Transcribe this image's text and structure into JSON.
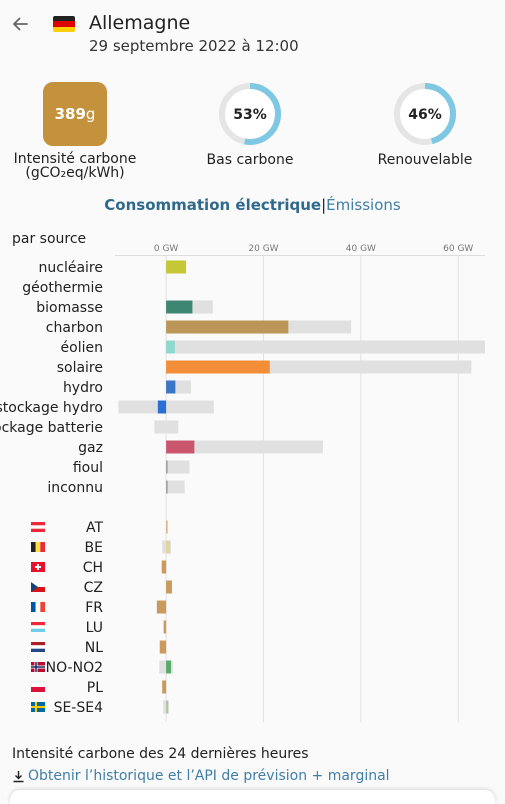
{
  "header": {
    "zone_name": "Allemagne",
    "datetime": "29 septembre 2022 à 12:00"
  },
  "stats": {
    "carbon_intensity": {
      "value": "389",
      "unit": "g",
      "label": "Intensité carbone",
      "sublabel": "(gCO₂eq/kWh)",
      "color": "#c4913d"
    },
    "low_carbon": {
      "value": "53%",
      "fraction": 0.53,
      "label": "Bas carbone"
    },
    "renewable": {
      "value": "46%",
      "fraction": 0.46,
      "label": "Renouvelable"
    },
    "ring_color": "#7ec8e3"
  },
  "tabs": {
    "consumption": "Consommation électrique",
    "separator": "|",
    "emissions": "Émissions"
  },
  "section_label": "par source",
  "chart_data": {
    "type": "bar",
    "unit": "GW",
    "xlim": [
      -10.5,
      65.5
    ],
    "ticks": [
      0,
      20,
      40,
      60
    ],
    "tick_labels": [
      "0 GW",
      "20 GW",
      "40 GW",
      "60 GW"
    ],
    "sources": [
      {
        "label": "nucléaire",
        "value": 4.1,
        "capacity": 4.1,
        "color": "#c5c735"
      },
      {
        "label": "géothermie",
        "value": 0,
        "capacity": 0,
        "color": "#c5c735"
      },
      {
        "label": "biomasse",
        "value": 5.4,
        "capacity": 9.6,
        "color": "#3d8672"
      },
      {
        "label": "charbon",
        "value": 25.1,
        "capacity": 38.0,
        "color": "#ba9758"
      },
      {
        "label": "éolien",
        "value": 1.8,
        "capacity": 65.5,
        "color": "#8fd8cd"
      },
      {
        "label": "solaire",
        "value": 21.3,
        "capacity": 62.7,
        "color": "#f38e38"
      },
      {
        "label": "hydro",
        "value": 1.9,
        "capacity": 5.1,
        "color": "#3b76c4"
      },
      {
        "label": "stockage hydro",
        "value": -1.7,
        "capacity_neg": -9.8,
        "capacity": 9.8,
        "color": "#2b6fd6"
      },
      {
        "label": "stockage batterie",
        "value": 0,
        "capacity_neg": -2.4,
        "capacity": 2.5,
        "color": "#2b6fd6"
      },
      {
        "label": "gaz",
        "value": 5.8,
        "capacity": 32.2,
        "color": "#c9566d"
      },
      {
        "label": "fioul",
        "value": 0.3,
        "capacity": 4.8,
        "color": "#999999"
      },
      {
        "label": "inconnu",
        "value": 0.3,
        "capacity": 3.8,
        "color": "#999999"
      }
    ],
    "exchanges": [
      {
        "label": "AT",
        "flag": "at",
        "value": 0.3,
        "capacity": 0.3,
        "color": "#d8b48a"
      },
      {
        "label": "BE",
        "flag": "be",
        "value": 0.8,
        "capacity_neg": -0.8,
        "capacity": 1.0,
        "color": "#e3d49a"
      },
      {
        "label": "CH",
        "flag": "ch",
        "value": -0.9,
        "capacity_neg": -0.9,
        "capacity": 0,
        "color": "#c99a5b"
      },
      {
        "label": "CZ",
        "flag": "cz",
        "value": 1.2,
        "capacity": 1.2,
        "color": "#c99a5b"
      },
      {
        "label": "FR",
        "flag": "fr",
        "value": -1.9,
        "capacity_neg": -1.9,
        "capacity": 0,
        "color": "#c99a5b"
      },
      {
        "label": "LU",
        "flag": "lu",
        "value": -0.5,
        "capacity_neg": -0.5,
        "capacity": 0,
        "color": "#c99a5b"
      },
      {
        "label": "NL",
        "flag": "nl",
        "value": -1.3,
        "capacity_neg": -1.3,
        "capacity": 0,
        "color": "#c99a5b"
      },
      {
        "label": "NO-NO2",
        "flag": "no",
        "value": 1.0,
        "capacity_neg": -1.4,
        "capacity": 1.4,
        "color": "#5aa86a"
      },
      {
        "label": "PL",
        "flag": "pl",
        "value": -0.8,
        "capacity_neg": -0.8,
        "capacity": 0,
        "color": "#c99a5b"
      },
      {
        "label": "SE-SE4",
        "flag": "se",
        "value": 0.4,
        "capacity_neg": -0.6,
        "capacity": 0.6,
        "color": "#a8c9a0"
      }
    ]
  },
  "footer": {
    "title": "Intensité carbone des 24 dernières heures",
    "link": "Obtenir l’historique et l’API de prévision + marginal"
  }
}
